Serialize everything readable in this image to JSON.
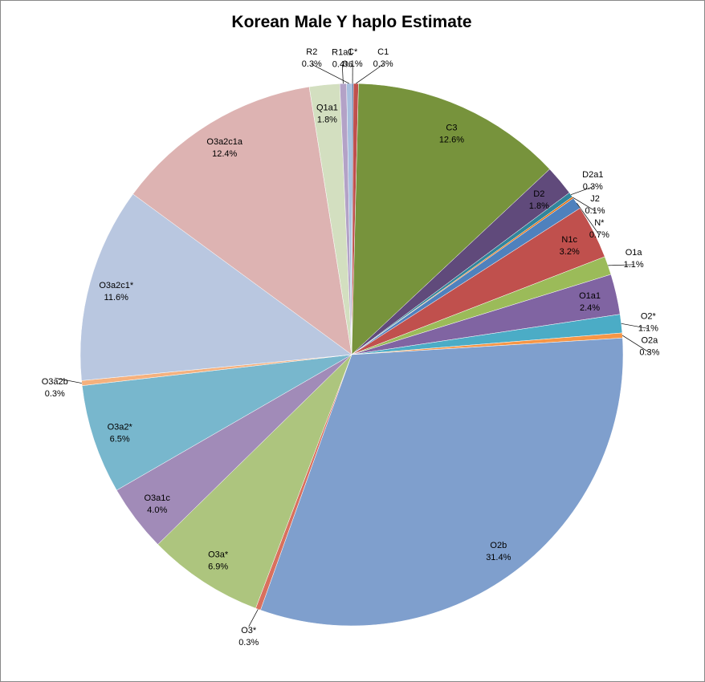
{
  "chart_data": {
    "type": "pie",
    "title": "Korean Male Y haplo Estimate",
    "categories": [
      "C*",
      "C1",
      "C3",
      "D2",
      "D2a1",
      "J2",
      "N*",
      "N1c",
      "O1a",
      "O1a1",
      "O2*",
      "O2a",
      "O2b",
      "O3*",
      "O3a*",
      "O3a1c",
      "O3a2*",
      "O3a2b",
      "O3a2c1*",
      "O3a2c1a",
      "Q1a1",
      "R1a1",
      "R2"
    ],
    "values": [
      0.1,
      0.3,
      12.6,
      1.8,
      0.3,
      0.1,
      0.7,
      3.2,
      1.1,
      2.4,
      1.1,
      0.3,
      31.4,
      0.3,
      6.9,
      4.0,
      6.5,
      0.3,
      11.6,
      12.4,
      1.8,
      0.4,
      0.3
    ],
    "value_labels": [
      "0.1%",
      "0.3%",
      "12.6%",
      "1.8%",
      "0.3%",
      "0.1%",
      "0.7%",
      "3.2%",
      "1.1%",
      "2.4%",
      "1.1%",
      "0.3%",
      "31.4%",
      "0.3%",
      "6.9%",
      "4.0%",
      "6.5%",
      "0.3%",
      "11.6%",
      "12.4%",
      "1.8%",
      "0.4%",
      "0.3%"
    ],
    "colors": [
      "#4a6fa5",
      "#c0504d",
      "#77933c",
      "#604a7b",
      "#31859c",
      "#e46c0a",
      "#4f81bd",
      "#c0504d",
      "#9bbb59",
      "#8064a2",
      "#4bacc6",
      "#f79646",
      "#7f9fcd",
      "#d9705e",
      "#adc57e",
      "#a18bb8",
      "#78b7cd",
      "#f5b17e",
      "#b9c7e0",
      "#ddb3b2",
      "#d3dfc0",
      "#b3a2c7",
      "#a7bfde"
    ]
  }
}
